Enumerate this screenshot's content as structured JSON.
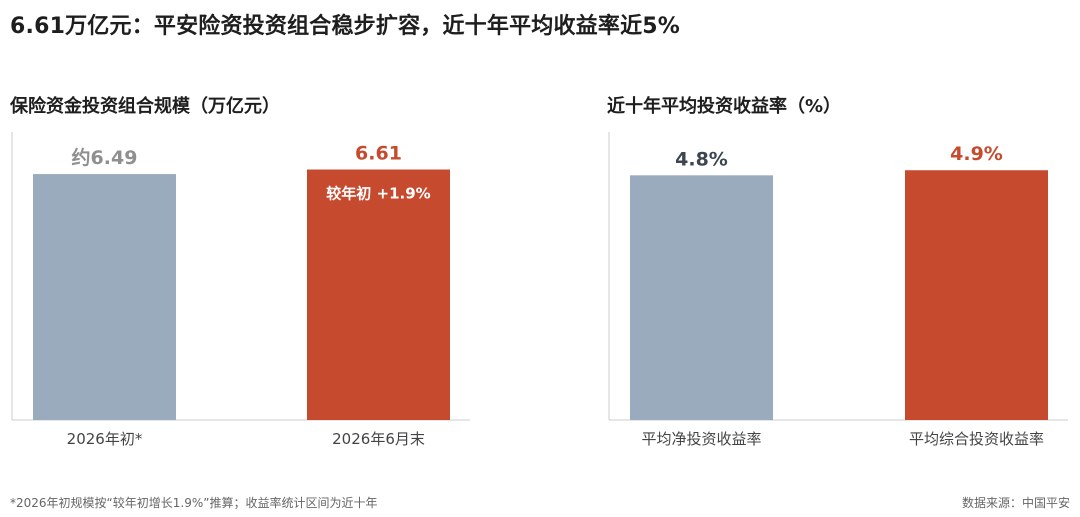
{
  "page_title": "6.61万亿元：平安险资投资组合稳步扩容，近十年平均收益率近5%",
  "footnote": "*2026年初规模按“较年初增长1.9%”推算；收益率统计区间为近十年",
  "source": "数据来源：中国平安",
  "colors": {
    "gray": "#9aabbd",
    "red": "#c64a2e",
    "gray_text": "#8f8f8f",
    "dark_text": "#3d4650",
    "axis": "#cccccc"
  },
  "chart_data": [
    {
      "type": "bar",
      "title": "保险资金投资组合规模（万亿元）",
      "categories": [
        "2026年初*",
        "2026年6月末"
      ],
      "values": [
        6.49,
        6.61
      ],
      "value_labels": [
        "约6.49",
        "6.61"
      ],
      "annotations": [
        "",
        "较年初 +1.9%"
      ],
      "bar_colors": [
        "#9aabbd",
        "#c64a2e"
      ],
      "label_colors": [
        "#8f8f8f",
        "#c64a2e"
      ],
      "ylim": [
        0,
        7.6
      ],
      "grid": false,
      "xlabel": "",
      "ylabel": ""
    },
    {
      "type": "bar",
      "title": "近十年平均投资收益率（%）",
      "categories": [
        "平均净投资收益率",
        "平均综合投资收益率"
      ],
      "values": [
        4.8,
        4.9
      ],
      "value_labels": [
        "4.8%",
        "4.9%"
      ],
      "annotations": [
        "",
        ""
      ],
      "bar_colors": [
        "#9aabbd",
        "#c64a2e"
      ],
      "label_colors": [
        "#3d4650",
        "#c64a2e"
      ],
      "ylim": [
        0,
        5.65
      ],
      "grid": false,
      "xlabel": "",
      "ylabel": ""
    }
  ]
}
